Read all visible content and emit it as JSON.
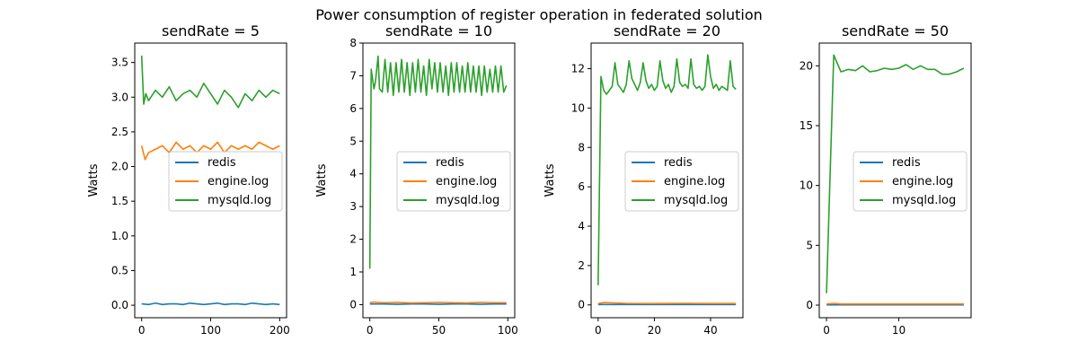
{
  "title": "Power consumption of register operation in federated solution",
  "colors": {
    "redis": "#1f77b4",
    "engine": "#ff7f0e",
    "mysqld": "#2ca02c"
  },
  "chart_data": [
    {
      "type": "line",
      "title": "sendRate = 5",
      "ylabel": "Watts",
      "xlim": [
        -10,
        210
      ],
      "ylim": [
        -0.18,
        3.78
      ],
      "xticks": [
        0,
        100,
        200
      ],
      "yticks": [
        0.0,
        0.5,
        1.0,
        1.5,
        2.0,
        2.5,
        3.0,
        3.5
      ],
      "ytick_labels": [
        "0.0",
        "0.5",
        "1.0",
        "1.5",
        "2.0",
        "2.5",
        "3.0",
        "3.5"
      ],
      "legend": "center-right",
      "series": [
        {
          "name": "redis",
          "x": [
            0,
            10,
            20,
            30,
            40,
            50,
            60,
            70,
            80,
            90,
            100,
            110,
            120,
            130,
            140,
            150,
            160,
            170,
            180,
            190,
            200
          ],
          "y": [
            0.02,
            0.01,
            0.03,
            0.01,
            0.02,
            0.02,
            0.01,
            0.03,
            0.02,
            0.01,
            0.02,
            0.03,
            0.01,
            0.02,
            0.02,
            0.01,
            0.03,
            0.02,
            0.01,
            0.02,
            0.01
          ]
        },
        {
          "name": "engine.log",
          "x": [
            0,
            5,
            10,
            20,
            30,
            40,
            50,
            60,
            70,
            80,
            90,
            100,
            110,
            120,
            130,
            140,
            150,
            160,
            170,
            180,
            190,
            200
          ],
          "y": [
            2.3,
            2.1,
            2.2,
            2.25,
            2.3,
            2.2,
            2.35,
            2.25,
            2.3,
            2.2,
            2.3,
            2.25,
            2.35,
            2.2,
            2.3,
            2.25,
            2.3,
            2.25,
            2.35,
            2.3,
            2.25,
            2.3
          ]
        },
        {
          "name": "mysqld.log",
          "x": [
            0,
            3,
            6,
            10,
            20,
            30,
            40,
            50,
            60,
            70,
            80,
            90,
            100,
            110,
            120,
            130,
            140,
            150,
            160,
            170,
            180,
            190,
            200
          ],
          "y": [
            3.6,
            2.9,
            3.05,
            2.95,
            3.1,
            3.0,
            3.15,
            2.95,
            3.05,
            3.1,
            3.0,
            3.2,
            3.05,
            2.9,
            3.1,
            3.0,
            2.85,
            3.05,
            2.95,
            3.1,
            3.0,
            3.1,
            3.05
          ]
        }
      ]
    },
    {
      "type": "line",
      "title": "sendRate = 10",
      "ylabel": "Watts",
      "xlim": [
        -5,
        105
      ],
      "ylim": [
        -0.4,
        8.0
      ],
      "xticks": [
        0,
        50,
        100
      ],
      "yticks": [
        0,
        1,
        2,
        3,
        4,
        5,
        6,
        7,
        8
      ],
      "ytick_labels": [
        "0",
        "1",
        "2",
        "3",
        "4",
        "5",
        "6",
        "7",
        "8"
      ],
      "legend": "center-right",
      "series": [
        {
          "name": "redis",
          "x": [
            0,
            10,
            20,
            30,
            40,
            50,
            60,
            70,
            80,
            90,
            99
          ],
          "y": [
            0.02,
            0.02,
            0.01,
            0.02,
            0.02,
            0.01,
            0.02,
            0.02,
            0.01,
            0.02,
            0.02
          ]
        },
        {
          "name": "engine.log",
          "x": [
            0,
            2,
            10,
            20,
            30,
            40,
            50,
            60,
            70,
            80,
            90,
            99
          ],
          "y": [
            0.05,
            0.08,
            0.06,
            0.07,
            0.05,
            0.06,
            0.07,
            0.06,
            0.05,
            0.07,
            0.06,
            0.06
          ]
        },
        {
          "name": "mysqld.log",
          "x": [
            0,
            1,
            3,
            4,
            6,
            7,
            9,
            11,
            13,
            15,
            17,
            19,
            21,
            23,
            25,
            27,
            29,
            31,
            33,
            35,
            37,
            39,
            41,
            43,
            45,
            47,
            49,
            51,
            53,
            55,
            57,
            59,
            61,
            63,
            65,
            67,
            69,
            71,
            73,
            75,
            77,
            79,
            81,
            83,
            85,
            87,
            89,
            91,
            93,
            95,
            97,
            99
          ],
          "y": [
            1.1,
            7.2,
            6.6,
            6.8,
            7.6,
            6.6,
            6.5,
            7.5,
            6.5,
            7.4,
            6.4,
            7.4,
            6.5,
            7.5,
            6.5,
            7.4,
            6.4,
            7.4,
            6.5,
            7.5,
            6.5,
            7.3,
            6.4,
            7.5,
            6.6,
            7.4,
            6.5,
            7.4,
            6.5,
            7.3,
            6.4,
            7.4,
            6.5,
            7.4,
            6.5,
            7.3,
            6.5,
            7.4,
            6.5,
            7.3,
            6.5,
            7.3,
            6.4,
            7.3,
            6.5,
            7.2,
            6.5,
            7.3,
            6.5,
            7.3,
            6.5,
            6.7
          ]
        }
      ]
    },
    {
      "type": "line",
      "title": "sendRate = 20",
      "ylabel": "Watts",
      "xlim": [
        -2.5,
        51.5
      ],
      "ylim": [
        -0.65,
        13.3
      ],
      "xticks": [
        0,
        20,
        40
      ],
      "yticks": [
        0,
        2,
        4,
        6,
        8,
        10,
        12
      ],
      "ytick_labels": [
        "0",
        "2",
        "4",
        "6",
        "8",
        "10",
        "12"
      ],
      "legend": "center-right",
      "series": [
        {
          "name": "redis",
          "x": [
            0,
            10,
            20,
            30,
            40,
            49
          ],
          "y": [
            0.02,
            0.02,
            0.02,
            0.02,
            0.02,
            0.02
          ]
        },
        {
          "name": "engine.log",
          "x": [
            0,
            2,
            10,
            20,
            30,
            40,
            49
          ],
          "y": [
            0.07,
            0.12,
            0.08,
            0.07,
            0.08,
            0.07,
            0.07
          ]
        },
        {
          "name": "mysqld.log",
          "x": [
            0,
            1,
            2,
            3,
            4,
            5,
            6,
            7,
            8,
            9,
            10,
            11,
            12,
            13,
            14,
            15,
            16,
            17,
            18,
            19,
            20,
            21,
            22,
            23,
            24,
            25,
            26,
            27,
            28,
            29,
            30,
            31,
            32,
            33,
            34,
            35,
            36,
            37,
            38,
            39,
            40,
            41,
            42,
            43,
            44,
            45,
            46,
            47,
            48,
            49
          ],
          "y": [
            1.0,
            11.6,
            10.9,
            10.7,
            10.9,
            11.1,
            12.3,
            11.2,
            11.0,
            10.8,
            11.2,
            12.4,
            11.5,
            11.2,
            10.9,
            11.3,
            12.3,
            11.4,
            11.0,
            11.2,
            10.9,
            11.1,
            12.4,
            11.4,
            11.0,
            11.2,
            10.8,
            11.1,
            12.5,
            11.3,
            11.1,
            11.2,
            11.0,
            12.5,
            11.2,
            11.0,
            11.1,
            10.9,
            11.1,
            12.7,
            11.6,
            11.0,
            11.2,
            10.9,
            11.1,
            11.0,
            10.9,
            12.4,
            11.1,
            10.95
          ]
        }
      ]
    },
    {
      "type": "line",
      "title": "sendRate = 50",
      "ylabel": "",
      "xlim": [
        -1,
        20
      ],
      "ylim": [
        -1.05,
        21.9
      ],
      "xticks": [
        0,
        10
      ],
      "yticks": [
        0,
        5,
        10,
        15,
        20
      ],
      "ytick_labels": [
        "0",
        "5",
        "10",
        "15",
        "20"
      ],
      "legend": "center-right",
      "series": [
        {
          "name": "redis",
          "x": [
            0,
            5,
            10,
            15,
            19
          ],
          "y": [
            0.02,
            0.02,
            0.02,
            0.02,
            0.02
          ]
        },
        {
          "name": "engine.log",
          "x": [
            0,
            1,
            2,
            5,
            10,
            15,
            19
          ],
          "y": [
            0.1,
            0.15,
            0.1,
            0.1,
            0.1,
            0.1,
            0.1
          ]
        },
        {
          "name": "mysqld.log",
          "x": [
            0,
            1,
            2,
            3,
            4,
            5,
            6,
            7,
            8,
            9,
            10,
            11,
            12,
            13,
            14,
            15,
            16,
            17,
            18,
            19
          ],
          "y": [
            1.0,
            20.9,
            19.5,
            19.7,
            19.6,
            20.0,
            19.5,
            19.6,
            19.8,
            19.7,
            19.8,
            20.1,
            19.7,
            20.0,
            19.7,
            19.7,
            19.3,
            19.3,
            19.5,
            19.8
          ]
        }
      ]
    }
  ]
}
